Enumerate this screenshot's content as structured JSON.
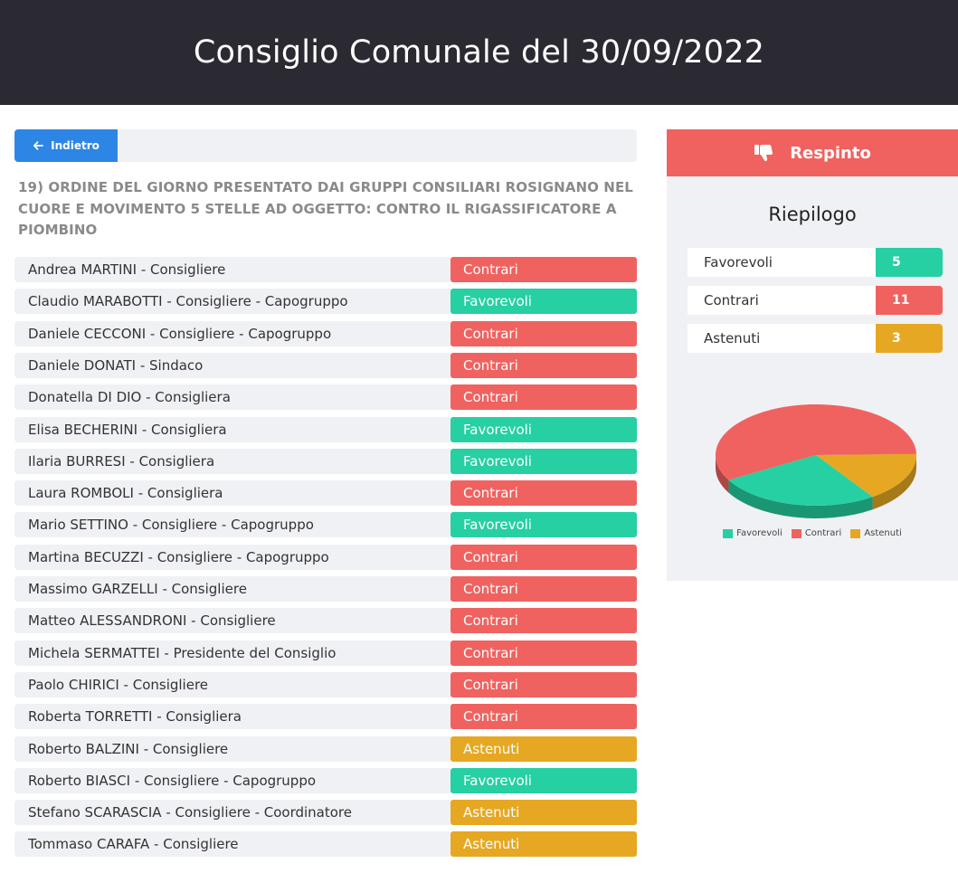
{
  "header": {
    "title": "Consiglio Comunale del 30/09/2022"
  },
  "toolbar": {
    "back_label": "Indietro"
  },
  "item": {
    "title": "19) ORDINE DEL GIORNO PRESENTATO DAI GRUPPI CONSILIARI ROSIGNANO NEL CUORE E MOVIMENTO 5 STELLE AD OGGETTO: CONTRO IL RIGASSIFICATORE A PIOMBINO"
  },
  "colors": {
    "Favorevoli": "#26d0a3",
    "Contrari": "#f0625f",
    "Astenuti": "#e6a823"
  },
  "votes": [
    {
      "name": "Andrea MARTINI - Consigliere",
      "vote": "Contrari"
    },
    {
      "name": "Claudio MARABOTTI - Consigliere - Capogruppo",
      "vote": "Favorevoli"
    },
    {
      "name": "Daniele CECCONI - Consigliere - Capogruppo",
      "vote": "Contrari"
    },
    {
      "name": "Daniele DONATI - Sindaco",
      "vote": "Contrari"
    },
    {
      "name": "Donatella DI DIO - Consigliera",
      "vote": "Contrari"
    },
    {
      "name": "Elisa BECHERINI - Consigliera",
      "vote": "Favorevoli"
    },
    {
      "name": "Ilaria BURRESI - Consigliera",
      "vote": "Favorevoli"
    },
    {
      "name": "Laura ROMBOLI - Consigliera",
      "vote": "Contrari"
    },
    {
      "name": "Mario SETTINO - Consigliere - Capogruppo",
      "vote": "Favorevoli"
    },
    {
      "name": "Martina BECUZZI - Consigliere - Capogruppo",
      "vote": "Contrari"
    },
    {
      "name": "Massimo GARZELLI - Consigliere",
      "vote": "Contrari"
    },
    {
      "name": "Matteo ALESSANDRONI - Consigliere",
      "vote": "Contrari"
    },
    {
      "name": "Michela SERMATTEI - Presidente del Consiglio",
      "vote": "Contrari"
    },
    {
      "name": "Paolo CHIRICI - Consigliere",
      "vote": "Contrari"
    },
    {
      "name": "Roberta TORRETTI - Consigliera",
      "vote": "Contrari"
    },
    {
      "name": "Roberto BALZINI - Consigliere",
      "vote": "Astenuti"
    },
    {
      "name": "Roberto BIASCI - Consigliere - Capogruppo",
      "vote": "Favorevoli"
    },
    {
      "name": "Stefano SCARASCIA - Consigliere - Coordinatore",
      "vote": "Astenuti"
    },
    {
      "name": "Tommaso CARAFA - Consigliere",
      "vote": "Astenuti"
    }
  ],
  "result": {
    "label": "Respinto",
    "icon": "thumbs-down-icon"
  },
  "summary": {
    "title": "Riepilogo",
    "rows": [
      {
        "label": "Favorevoli",
        "value": "5"
      },
      {
        "label": "Contrari",
        "value": "11"
      },
      {
        "label": "Astenuti",
        "value": "3"
      }
    ]
  },
  "chart_data": {
    "type": "pie",
    "categories": [
      "Favorevoli",
      "Contrari",
      "Astenuti"
    ],
    "values": [
      5,
      11,
      3
    ],
    "colors": [
      "#26d0a3",
      "#f0625f",
      "#e6a823"
    ],
    "legend": "bottom"
  }
}
